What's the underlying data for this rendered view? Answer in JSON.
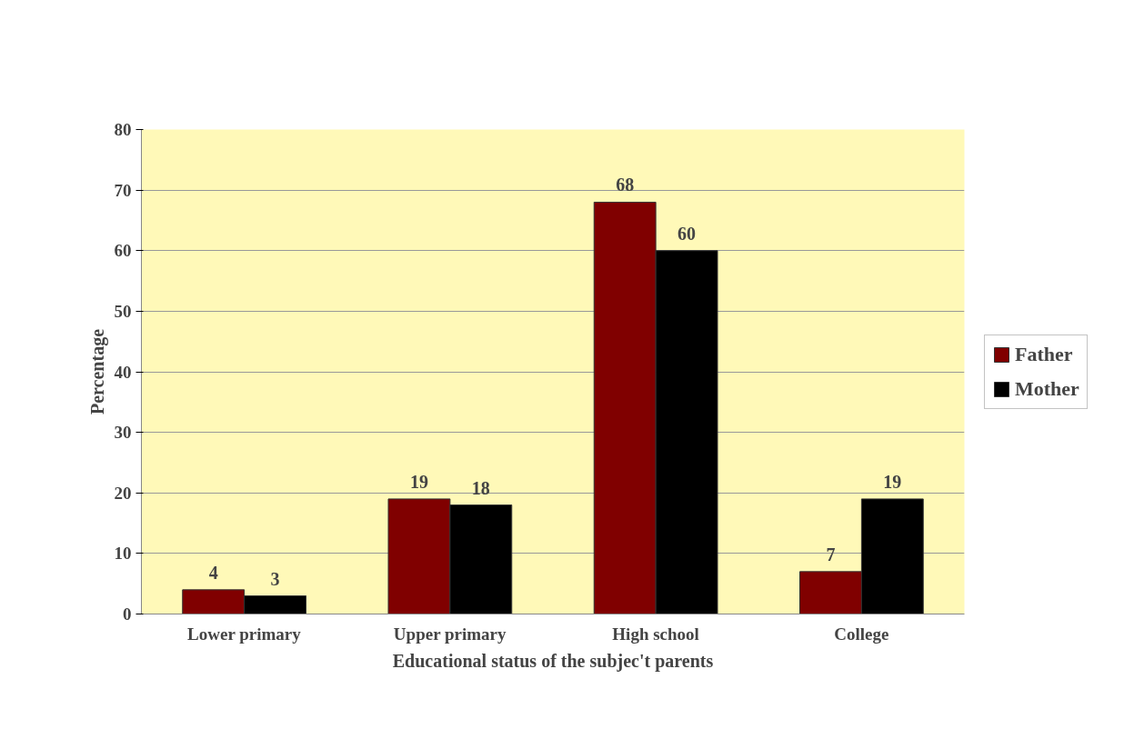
{
  "chart_data": {
    "type": "bar",
    "xlabel": "Educational status of the subjec't parents",
    "ylabel": "Percentage",
    "categories": [
      "Lower primary",
      "Upper primary",
      "High school",
      "College"
    ],
    "series": [
      {
        "name": "Father",
        "color": "#800000",
        "values": [
          4,
          19,
          68,
          7
        ]
      },
      {
        "name": "Mother",
        "color": "#000000",
        "values": [
          3,
          18,
          60,
          19
        ]
      }
    ],
    "ylim": [
      0,
      80
    ],
    "yticks": [
      0,
      10,
      20,
      30,
      40,
      50,
      60,
      70,
      80
    ],
    "grid": "y",
    "legend": "right",
    "data_labels": true
  }
}
